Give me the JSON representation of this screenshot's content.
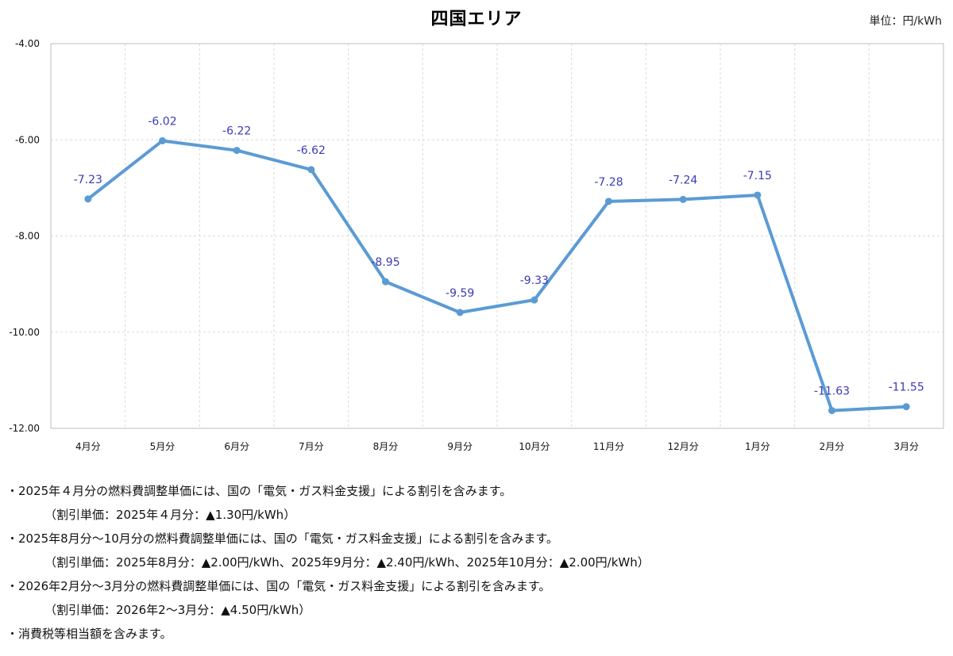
{
  "title": "四国エリア",
  "unit": "単位：円/kWh",
  "chart_data": {
    "type": "line",
    "title": "四国エリア",
    "categories": [
      "4月分",
      "5月分",
      "6月分",
      "7月分",
      "8月分",
      "9月分",
      "10月分",
      "11月分",
      "12月分",
      "1月分",
      "2月分",
      "3月分"
    ],
    "values": [
      -7.23,
      -6.02,
      -6.22,
      -6.62,
      -8.95,
      -9.59,
      -9.33,
      -7.28,
      -7.24,
      -7.15,
      -11.63,
      -11.55
    ],
    "value_labels": [
      "-7.23",
      "-6.02",
      "-6.22",
      "-6.62",
      "-8.95",
      "-9.59",
      "-9.33",
      "-7.28",
      "-7.24",
      "-7.15",
      "-11.63",
      "-11.55"
    ],
    "ylim": [
      -12,
      -4
    ],
    "yticks": [
      -4,
      -6,
      -8,
      -10,
      -12
    ],
    "ytick_labels": [
      "-4.00",
      "-6.00",
      "-8.00",
      "-10.00",
      "-12.00"
    ],
    "grid": true,
    "line_color": "#5b9bd5",
    "label_color": "#3b3bb5"
  },
  "notes": [
    {
      "text": "・2025年４月分の燃料費調整単価には、国の「電気・ガス料金支援」による割引を含みます。",
      "sub": false
    },
    {
      "text": "（割引単価：2025年４月分：▲1.30円/kWh）",
      "sub": true
    },
    {
      "text": "・2025年8月分～10月分の燃料費調整単価には、国の「電気・ガス料金支援」による割引を含みます。",
      "sub": false
    },
    {
      "text": "（割引単価：2025年8月分：▲2.00円/kWh、2025年9月分：▲2.40円/kWh、2025年10月分：▲2.00円/kWh）",
      "sub": true
    },
    {
      "text": "・2026年2月分～3月分の燃料費調整単価には、国の「電気・ガス料金支援」による割引を含みます。",
      "sub": false
    },
    {
      "text": "（割引単価：2026年2～3月分：▲4.50円/kWh）",
      "sub": true
    },
    {
      "text": "・消費税等相当額を含みます。",
      "sub": false
    }
  ]
}
